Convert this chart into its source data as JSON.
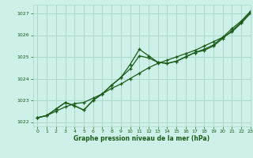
{
  "title": "Graphe pression niveau de la mer (hPa)",
  "bg_color": "#cdf0e8",
  "grid_color": "#aad8c8",
  "line_color": "#1a5c1a",
  "xlim": [
    -0.5,
    23
  ],
  "ylim": [
    1021.8,
    1027.4
  ],
  "yticks": [
    1022,
    1023,
    1024,
    1025,
    1026,
    1027
  ],
  "xticks": [
    0,
    1,
    2,
    3,
    4,
    5,
    6,
    7,
    8,
    9,
    10,
    11,
    12,
    13,
    14,
    15,
    16,
    17,
    18,
    19,
    20,
    21,
    22,
    23
  ],
  "series1": {
    "x": [
      0,
      1,
      2,
      3,
      4,
      5,
      6,
      7,
      8,
      9,
      10,
      11,
      12,
      13,
      14,
      15,
      16,
      17,
      18,
      19,
      20,
      21,
      22,
      23
    ],
    "y": [
      1022.2,
      1022.3,
      1022.5,
      1022.7,
      1022.85,
      1022.9,
      1023.1,
      1023.3,
      1023.55,
      1023.75,
      1024.0,
      1024.25,
      1024.5,
      1024.7,
      1024.85,
      1025.0,
      1025.15,
      1025.3,
      1025.5,
      1025.7,
      1025.9,
      1026.15,
      1026.55,
      1027.0
    ]
  },
  "series2": {
    "x": [
      0,
      1,
      2,
      3,
      4,
      5,
      6,
      7,
      8,
      9,
      10,
      11,
      12,
      13,
      14,
      15,
      16,
      17,
      18,
      19,
      20,
      21,
      22,
      23
    ],
    "y": [
      1022.2,
      1022.3,
      1022.6,
      1022.9,
      1022.75,
      1022.55,
      1023.0,
      1023.3,
      1023.7,
      1024.05,
      1024.45,
      1025.05,
      1024.95,
      1024.75,
      1024.7,
      1024.8,
      1025.0,
      1025.2,
      1025.3,
      1025.5,
      1025.85,
      1026.2,
      1026.6,
      1027.05
    ]
  },
  "series3": {
    "x": [
      0,
      1,
      2,
      3,
      4,
      5,
      6,
      7,
      8,
      9,
      10,
      11,
      12,
      13,
      14,
      15,
      16,
      17,
      18,
      19,
      20,
      21,
      22,
      23
    ],
    "y": [
      1022.2,
      1022.3,
      1022.6,
      1022.9,
      1022.75,
      1022.55,
      1023.0,
      1023.3,
      1023.7,
      1024.05,
      1024.65,
      1025.35,
      1025.05,
      1024.75,
      1024.7,
      1024.8,
      1025.0,
      1025.2,
      1025.35,
      1025.55,
      1025.9,
      1026.3,
      1026.65,
      1027.1
    ]
  }
}
